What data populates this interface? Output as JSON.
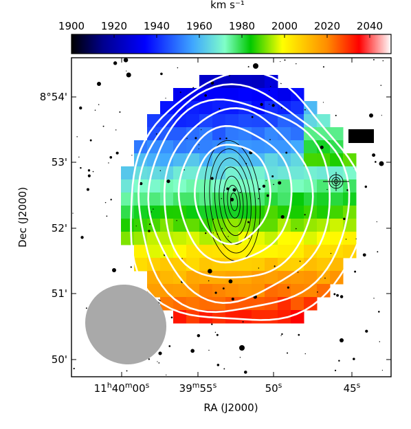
{
  "chart_data": {
    "type": "heatmap",
    "title": "",
    "colorbar": {
      "label": "km s⁻¹",
      "min": 1900,
      "max": 2050,
      "ticks": [
        "1900",
        "1920",
        "1940",
        "1960",
        "1980",
        "2000",
        "2020",
        "2040"
      ],
      "colormap": "jet-like (black, blue, cyan, green, yellow, red, white)"
    },
    "xlabel": "RA (J2000)",
    "ylabel": "Dec (J2000)",
    "x_ticks": [
      {
        "main": "11",
        "sup1": "h",
        "mid": "40",
        "sup2": "m",
        "tail": "00",
        "sup3": "s"
      },
      {
        "main": "",
        "sup1": "",
        "mid": "39",
        "sup2": "m",
        "tail": "55",
        "sup3": "s"
      },
      {
        "main": "",
        "sup1": "",
        "mid": "",
        "sup2": "",
        "tail": "50",
        "sup3": "s"
      },
      {
        "main": "",
        "sup1": "",
        "mid": "",
        "sup2": "",
        "tail": "45",
        "sup3": "s"
      }
    ],
    "y_ticks": [
      "8°54'",
      "53'",
      "52'",
      "51'",
      "50'"
    ],
    "velocity_field": "north (top) ~1920 km/s, south (bottom) ~2030 km/s, gradient along the vertical axis",
    "overlays": [
      {
        "name": "HI column density contours",
        "color": "#ffffff",
        "count": 6
      },
      {
        "name": "optical image contours",
        "color": "#000000",
        "count": 7
      }
    ],
    "beam": {
      "color": "#a9a9a9"
    },
    "grid": false
  }
}
